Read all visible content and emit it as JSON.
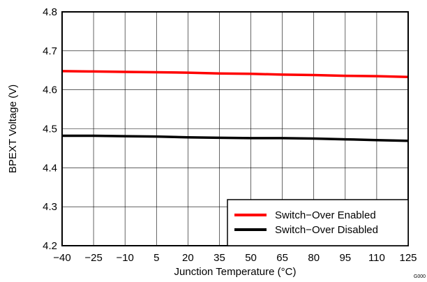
{
  "chart_data": {
    "type": "line",
    "xlabel": "Junction Temperature (°C)",
    "ylabel": "BPEXT Voltage (V)",
    "xlim": [
      -40,
      125
    ],
    "ylim": [
      4.2,
      4.8
    ],
    "xticks": [
      "−40",
      "−25",
      "−10",
      "5",
      "20",
      "35",
      "50",
      "65",
      "80",
      "95",
      "110",
      "125"
    ],
    "yticks": [
      "4.2",
      "4.3",
      "4.4",
      "4.5",
      "4.6",
      "4.7",
      "4.8"
    ],
    "grid": true,
    "legend_position": "bottom-right",
    "figure_id": "G000",
    "series": [
      {
        "name": "Switch−Over Enabled",
        "color": "#ff0000",
        "x": [
          -40,
          -25,
          -10,
          5,
          20,
          35,
          50,
          65,
          80,
          95,
          110,
          125
        ],
        "y": [
          4.648,
          4.647,
          4.646,
          4.645,
          4.644,
          4.642,
          4.641,
          4.639,
          4.638,
          4.636,
          4.635,
          4.633
        ]
      },
      {
        "name": "Switch−Over Disabled",
        "color": "#000000",
        "x": [
          -40,
          -25,
          -10,
          5,
          20,
          35,
          50,
          65,
          80,
          95,
          110,
          125
        ],
        "y": [
          4.482,
          4.482,
          4.481,
          4.48,
          4.478,
          4.477,
          4.476,
          4.476,
          4.475,
          4.473,
          4.471,
          4.469
        ]
      }
    ]
  }
}
